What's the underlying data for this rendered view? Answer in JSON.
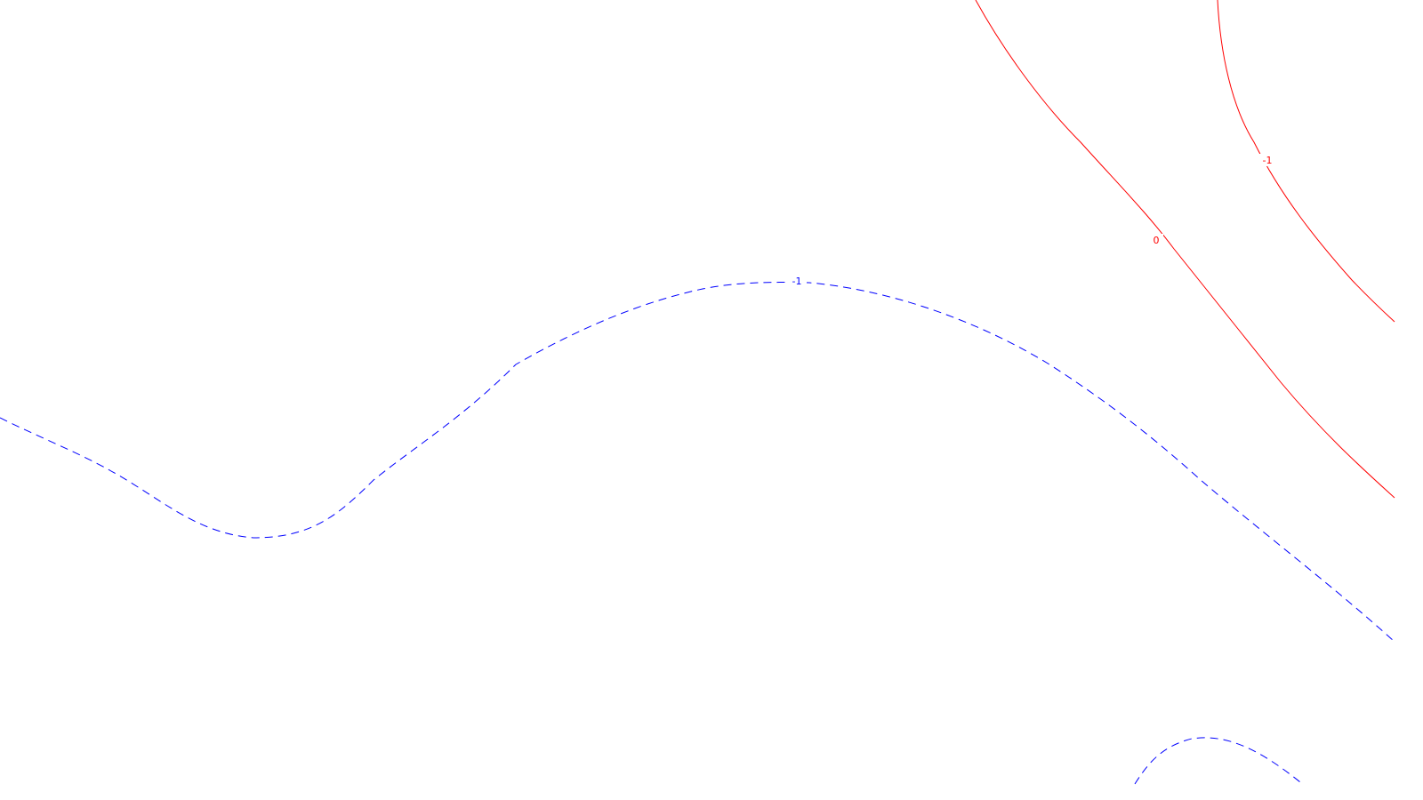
{
  "colors": {
    "background": "#ffffff",
    "positive_contour": "#ff0000",
    "negative_contour": "#0000ff"
  },
  "contours": [
    {
      "id": "red-0",
      "value": 0,
      "label": "0",
      "color": "#ff0000",
      "style": "solid"
    },
    {
      "id": "red-neg1",
      "value": -1,
      "label": "-1",
      "color": "#ff0000",
      "style": "solid"
    },
    {
      "id": "blue-neg1",
      "value": -1,
      "label": "-1",
      "color": "#0000ff",
      "style": "dashed"
    },
    {
      "id": "blue-closed",
      "value": null,
      "label": "",
      "color": "#0000ff",
      "style": "dashed"
    }
  ]
}
